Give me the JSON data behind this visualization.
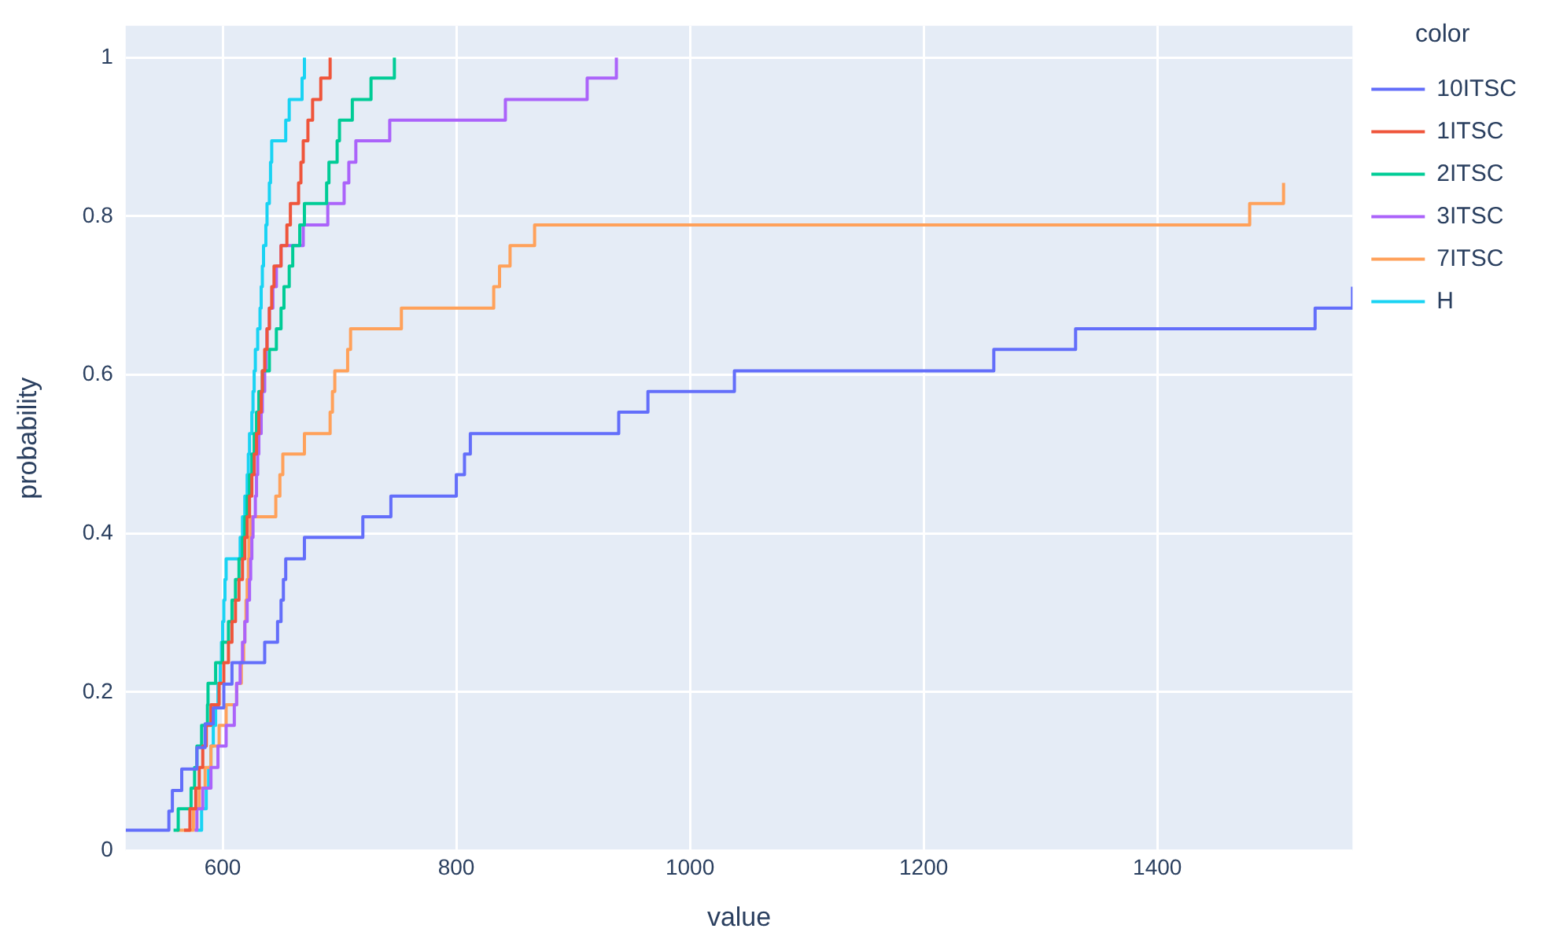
{
  "chart_data": {
    "type": "step",
    "xlabel": "value",
    "ylabel": "probability",
    "legend_title": "color",
    "legend": "right",
    "grid": true,
    "xlim": [
      517,
      1567
    ],
    "xticks": [
      600,
      800,
      1000,
      1200,
      1400
    ],
    "ylim": [
      0,
      1.04
    ],
    "yticks": [
      0,
      0.2,
      0.4,
      0.6,
      0.8,
      1
    ],
    "series": [
      {
        "name": "10ITSC",
        "color": "#636efa",
        "x": [
          517,
          554,
          557,
          565,
          578,
          585,
          592,
          601,
          608,
          636,
          647,
          650,
          652,
          654,
          670,
          720,
          744,
          800,
          807,
          812,
          939,
          964,
          1038,
          1260,
          1330,
          1535,
          1567
        ],
        "values": [
          0.026,
          0.05,
          0.076,
          0.103,
          0.13,
          0.16,
          0.18,
          0.21,
          0.237,
          0.263,
          0.289,
          0.316,
          0.342,
          0.368,
          0.395,
          0.421,
          0.447,
          0.474,
          0.5,
          0.526,
          0.553,
          0.579,
          0.605,
          0.632,
          0.658,
          0.684,
          0.711
        ]
      },
      {
        "name": "1ITSC",
        "color": "#ef553b",
        "x": [
          567,
          572,
          577,
          580,
          583,
          586,
          590,
          597,
          601,
          605,
          608,
          611,
          614,
          617,
          619,
          621,
          623,
          625,
          627,
          629,
          631,
          633,
          634,
          636,
          638,
          640,
          642,
          644,
          650,
          655,
          658,
          665,
          667,
          669,
          673,
          677,
          684,
          692
        ],
        "values": [
          0.026,
          0.053,
          0.079,
          0.105,
          0.132,
          0.158,
          0.184,
          0.211,
          0.237,
          0.263,
          0.289,
          0.316,
          0.342,
          0.368,
          0.395,
          0.421,
          0.447,
          0.474,
          0.5,
          0.526,
          0.553,
          0.579,
          0.605,
          0.632,
          0.658,
          0.684,
          0.711,
          0.737,
          0.763,
          0.789,
          0.816,
          0.842,
          0.868,
          0.895,
          0.921,
          0.947,
          0.974,
          1.0
        ]
      },
      {
        "name": "2ITSC",
        "color": "#00cc96",
        "x": [
          558,
          562,
          573,
          576,
          578,
          582,
          587,
          587.5,
          594,
          600,
          605,
          608,
          611,
          614,
          617,
          619,
          621,
          623,
          625,
          627,
          629,
          631,
          634,
          640,
          646,
          650,
          652.5,
          657,
          660,
          666,
          670,
          689,
          691,
          698,
          700,
          711,
          727,
          747
        ],
        "values": [
          0.026,
          0.053,
          0.079,
          0.105,
          0.132,
          0.158,
          0.184,
          0.211,
          0.237,
          0.263,
          0.289,
          0.316,
          0.342,
          0.368,
          0.395,
          0.421,
          0.447,
          0.474,
          0.5,
          0.526,
          0.553,
          0.579,
          0.605,
          0.632,
          0.658,
          0.684,
          0.711,
          0.737,
          0.763,
          0.789,
          0.816,
          0.842,
          0.868,
          0.895,
          0.921,
          0.947,
          0.974,
          1.0
        ]
      },
      {
        "name": "3ITSC",
        "color": "#ab63fa",
        "x": [
          576,
          578,
          583,
          590,
          596,
          603,
          610,
          612,
          615,
          617,
          619,
          621,
          623,
          624,
          625,
          626,
          628,
          629,
          630,
          631,
          633,
          634,
          636,
          637,
          638,
          640,
          643,
          646,
          650,
          669,
          690,
          704,
          708,
          714,
          743,
          842,
          912,
          937
        ],
        "values": [
          0.026,
          0.053,
          0.079,
          0.105,
          0.132,
          0.158,
          0.184,
          0.211,
          0.237,
          0.263,
          0.289,
          0.316,
          0.342,
          0.368,
          0.395,
          0.421,
          0.447,
          0.474,
          0.5,
          0.526,
          0.553,
          0.579,
          0.605,
          0.632,
          0.658,
          0.684,
          0.711,
          0.737,
          0.763,
          0.789,
          0.816,
          0.842,
          0.868,
          0.895,
          0.921,
          0.947,
          0.974,
          1.0
        ]
      },
      {
        "name": "7ITSC",
        "color": "#ffa15a",
        "x": [
          561,
          575,
          580,
          585,
          590,
          597,
          603,
          612,
          616,
          618,
          619,
          620,
          621,
          622,
          622.5,
          624,
          645.5,
          649,
          651.5,
          670,
          692,
          694,
          696,
          707,
          709.5,
          753,
          832,
          837,
          846,
          867,
          1479,
          1508
        ],
        "values": [
          0.026,
          0.053,
          0.079,
          0.105,
          0.132,
          0.158,
          0.184,
          0.211,
          0.237,
          0.263,
          0.289,
          0.316,
          0.342,
          0.368,
          0.395,
          0.421,
          0.447,
          0.474,
          0.5,
          0.526,
          0.553,
          0.579,
          0.605,
          0.632,
          0.658,
          0.684,
          0.711,
          0.737,
          0.763,
          0.789,
          0.816,
          0.842
        ]
      },
      {
        "name": "H",
        "color": "#19d3f3",
        "x": [
          578,
          582,
          586,
          588,
          590,
          592,
          594,
          596,
          598,
          599,
          600,
          601,
          602,
          603,
          615,
          617,
          619,
          621,
          622,
          623,
          625,
          626,
          627,
          628,
          630,
          632,
          633,
          634,
          635,
          637,
          638,
          640,
          641,
          642,
          654,
          657,
          668,
          670
        ],
        "values": [
          0.026,
          0.053,
          0.079,
          0.105,
          0.132,
          0.158,
          0.184,
          0.211,
          0.237,
          0.263,
          0.289,
          0.316,
          0.342,
          0.368,
          0.395,
          0.421,
          0.447,
          0.474,
          0.5,
          0.526,
          0.553,
          0.579,
          0.605,
          0.632,
          0.658,
          0.684,
          0.711,
          0.737,
          0.763,
          0.789,
          0.816,
          0.842,
          0.868,
          0.895,
          0.921,
          0.947,
          0.974,
          1.0
        ]
      }
    ]
  }
}
